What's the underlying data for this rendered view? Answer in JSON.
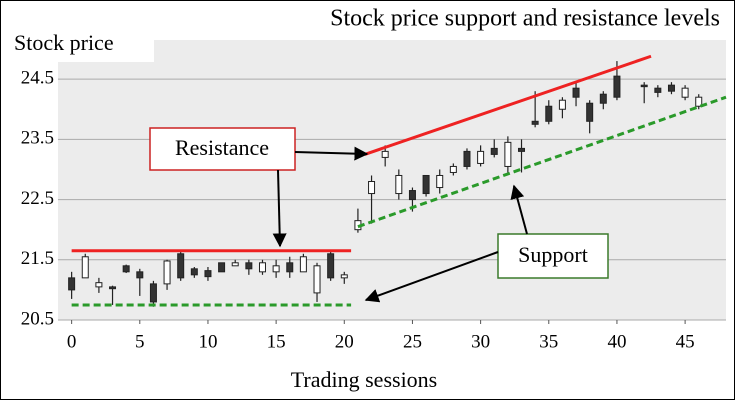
{
  "chart_data": {
    "type": "candlestick",
    "title": "Stock price support and resistance levels",
    "y_label": "Stock price",
    "x_label": "Trading sessions",
    "xlim": [
      -1,
      48
    ],
    "ylim": [
      20.5,
      25.15
    ],
    "xticks": [
      0,
      5,
      10,
      15,
      20,
      25,
      30,
      35,
      40,
      45
    ],
    "yticks": [
      20.5,
      21.5,
      22.5,
      23.5,
      24.5
    ],
    "grid": true,
    "up_color": "#ffffff",
    "down_color": "#333333",
    "x": [
      0,
      1,
      2,
      3,
      4,
      5,
      6,
      7,
      8,
      9,
      10,
      11,
      12,
      13,
      14,
      15,
      16,
      17,
      18,
      19,
      20,
      21,
      22,
      23,
      24,
      25,
      26,
      27,
      28,
      29,
      30,
      31,
      32,
      33,
      34,
      35,
      36,
      37,
      38,
      39,
      40,
      42,
      43,
      44,
      45,
      46
    ],
    "open": [
      21.2,
      21.2,
      21.05,
      21.05,
      21.4,
      21.3,
      21.1,
      21.1,
      21.6,
      21.35,
      21.32,
      21.45,
      21.4,
      21.45,
      21.3,
      21.3,
      21.45,
      21.3,
      20.95,
      21.6,
      21.2,
      22.0,
      22.6,
      23.2,
      22.6,
      22.65,
      22.9,
      22.7,
      22.95,
      23.3,
      23.1,
      23.35,
      23.05,
      23.35,
      23.8,
      24.05,
      24.0,
      24.35,
      24.1,
      24.25,
      24.55,
      24.4,
      24.35,
      24.4,
      24.2,
      24.05
    ],
    "high": [
      21.3,
      21.6,
      21.2,
      21.07,
      21.42,
      21.35,
      21.15,
      21.5,
      21.65,
      21.38,
      21.38,
      21.45,
      21.5,
      21.5,
      21.5,
      21.5,
      21.55,
      21.6,
      21.45,
      21.65,
      21.3,
      22.35,
      22.9,
      23.4,
      23.0,
      22.7,
      22.9,
      23.0,
      23.1,
      23.35,
      23.4,
      23.5,
      23.55,
      23.5,
      24.3,
      24.15,
      24.2,
      24.45,
      24.15,
      24.3,
      24.8,
      24.45,
      24.4,
      24.45,
      24.4,
      24.25
    ],
    "low": [
      20.85,
      21.2,
      20.95,
      20.75,
      21.28,
      20.9,
      20.72,
      21.0,
      21.15,
      21.2,
      21.15,
      21.3,
      21.4,
      21.25,
      21.25,
      21.2,
      21.2,
      21.3,
      20.8,
      21.15,
      21.1,
      21.95,
      22.1,
      23.05,
      22.5,
      22.3,
      22.55,
      22.6,
      22.9,
      23.0,
      23.05,
      23.2,
      22.95,
      22.95,
      23.7,
      23.75,
      23.85,
      24.05,
      23.6,
      24.0,
      24.15,
      24.1,
      24.2,
      24.25,
      24.15,
      24.0
    ],
    "close": [
      21.0,
      21.55,
      21.12,
      21.02,
      21.3,
      21.2,
      20.8,
      21.48,
      21.2,
      21.25,
      21.22,
      21.3,
      21.45,
      21.35,
      21.45,
      21.4,
      21.3,
      21.55,
      21.4,
      21.2,
      21.25,
      22.15,
      22.8,
      23.3,
      22.9,
      22.5,
      22.6,
      22.9,
      23.05,
      23.05,
      23.3,
      23.25,
      23.45,
      23.3,
      23.75,
      23.8,
      24.15,
      24.2,
      23.8,
      24.1,
      24.2,
      24.38,
      24.28,
      24.3,
      24.35,
      24.2
    ],
    "lines": [
      {
        "x": [
          0,
          20.5
        ],
        "y": [
          21.65,
          21.65
        ],
        "color": "#ee2222",
        "style": "solid"
      },
      {
        "x": [
          21.5,
          42.5
        ],
        "y": [
          23.25,
          24.88
        ],
        "color": "#ee2222",
        "style": "solid"
      },
      {
        "x": [
          0,
          20.5
        ],
        "y": [
          20.75,
          20.75
        ],
        "color": "#2a9a2a",
        "style": "dashed"
      },
      {
        "x": [
          21,
          48
        ],
        "y": [
          22.05,
          24.2
        ],
        "color": "#2a9a2a",
        "style": "dashed"
      }
    ],
    "annotations": [
      "Resistance",
      "Support"
    ]
  }
}
